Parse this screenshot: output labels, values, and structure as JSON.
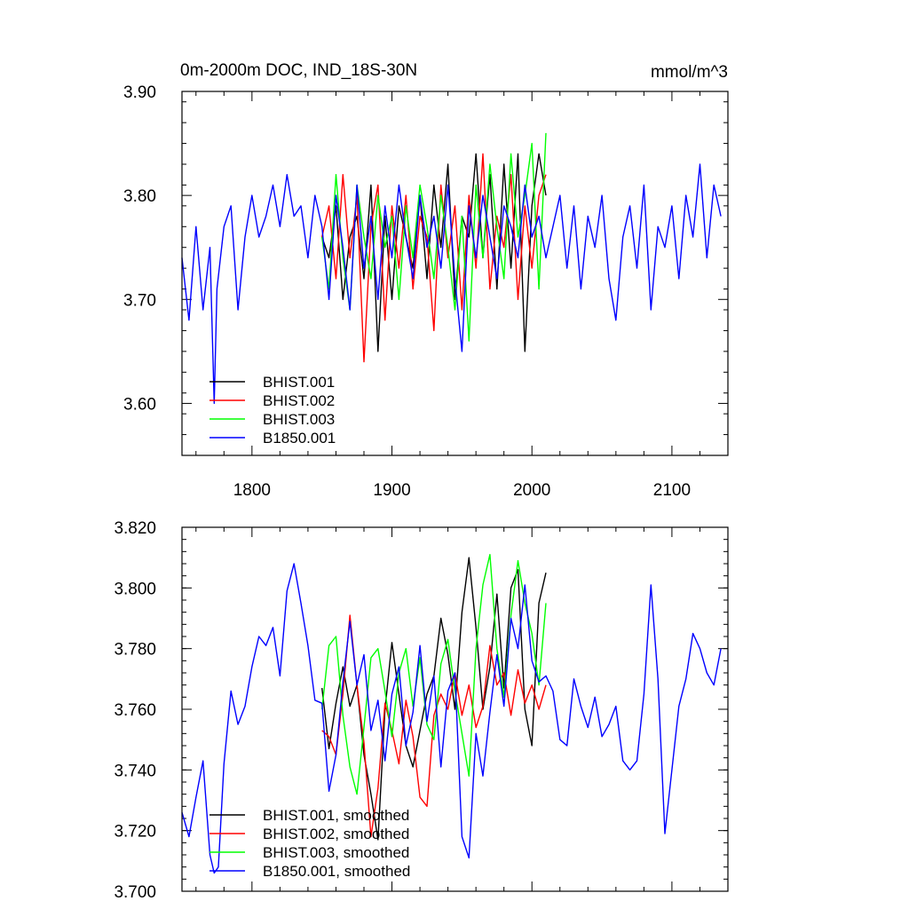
{
  "chart_data": [
    {
      "type": "line",
      "title": "0m-2000m DOC, IND_18S-30N",
      "units": "mmol/m^3",
      "xlim": [
        1750,
        2140
      ],
      "ylim": [
        3.55,
        3.9
      ],
      "xticks": [
        1800,
        1900,
        2000,
        2100
      ],
      "xtick_labels": [
        "1800",
        "1900",
        "2000",
        "2100"
      ],
      "yticks": [
        3.6,
        3.7,
        3.8,
        3.9
      ],
      "ytick_labels": [
        "3.60",
        "3.70",
        "3.80",
        "3.90"
      ],
      "legend_position": "bottom-left",
      "series": [
        {
          "name": "BHIST.001",
          "color": "#000000",
          "x": [
            1850,
            1855,
            1860,
            1865,
            1870,
            1875,
            1880,
            1885,
            1890,
            1895,
            1900,
            1905,
            1910,
            1915,
            1920,
            1925,
            1930,
            1935,
            1940,
            1945,
            1950,
            1955,
            1960,
            1965,
            1970,
            1975,
            1980,
            1985,
            1990,
            1995,
            2000,
            2005,
            2010
          ],
          "y": [
            3.76,
            3.74,
            3.79,
            3.7,
            3.76,
            3.78,
            3.72,
            3.81,
            3.65,
            3.78,
            3.7,
            3.79,
            3.76,
            3.73,
            3.8,
            3.72,
            3.81,
            3.75,
            3.83,
            3.7,
            3.78,
            3.76,
            3.84,
            3.74,
            3.82,
            3.71,
            3.83,
            3.73,
            3.84,
            3.65,
            3.79,
            3.84,
            3.8
          ]
        },
        {
          "name": "BHIST.002",
          "color": "#ff0000",
          "x": [
            1850,
            1855,
            1860,
            1865,
            1870,
            1875,
            1880,
            1885,
            1890,
            1895,
            1900,
            1905,
            1910,
            1915,
            1920,
            1925,
            1930,
            1935,
            1940,
            1945,
            1950,
            1955,
            1960,
            1965,
            1970,
            1975,
            1980,
            1985,
            1990,
            1995,
            2000,
            2005,
            2010
          ],
          "y": [
            3.76,
            3.79,
            3.72,
            3.82,
            3.74,
            3.8,
            3.64,
            3.77,
            3.81,
            3.68,
            3.79,
            3.73,
            3.8,
            3.71,
            3.78,
            3.76,
            3.67,
            3.81,
            3.74,
            3.79,
            3.69,
            3.8,
            3.73,
            3.84,
            3.71,
            3.78,
            3.75,
            3.82,
            3.7,
            3.79,
            3.73,
            3.8,
            3.82
          ]
        },
        {
          "name": "BHIST.003",
          "color": "#00ff00",
          "x": [
            1850,
            1855,
            1860,
            1865,
            1870,
            1875,
            1880,
            1885,
            1890,
            1895,
            1900,
            1905,
            1910,
            1915,
            1920,
            1925,
            1930,
            1935,
            1940,
            1945,
            1950,
            1955,
            1960,
            1965,
            1970,
            1975,
            1980,
            1985,
            1990,
            1995,
            2000,
            2005,
            2010
          ],
          "y": [
            3.76,
            3.71,
            3.82,
            3.74,
            3.69,
            3.81,
            3.76,
            3.72,
            3.8,
            3.75,
            3.78,
            3.7,
            3.79,
            3.74,
            3.81,
            3.77,
            3.72,
            3.8,
            3.75,
            3.69,
            3.78,
            3.66,
            3.81,
            3.74,
            3.83,
            3.77,
            3.72,
            3.84,
            3.76,
            3.8,
            3.85,
            3.71,
            3.86
          ]
        },
        {
          "name": "B1850.001",
          "color": "#0000ff",
          "x": [
            1750,
            1755,
            1760,
            1765,
            1770,
            1773,
            1775,
            1780,
            1785,
            1790,
            1795,
            1800,
            1805,
            1810,
            1815,
            1820,
            1825,
            1830,
            1835,
            1840,
            1845,
            1850,
            1855,
            1860,
            1865,
            1870,
            1875,
            1880,
            1885,
            1890,
            1895,
            1900,
            1905,
            1910,
            1915,
            1920,
            1925,
            1930,
            1935,
            1940,
            1945,
            1950,
            1955,
            1960,
            1965,
            1970,
            1975,
            1980,
            1985,
            1990,
            1995,
            2000,
            2005,
            2010,
            2015,
            2020,
            2025,
            2030,
            2035,
            2040,
            2045,
            2050,
            2055,
            2060,
            2065,
            2070,
            2075,
            2080,
            2085,
            2090,
            2095,
            2100,
            2105,
            2110,
            2115,
            2120,
            2125,
            2130,
            2135
          ],
          "y": [
            3.74,
            3.68,
            3.77,
            3.69,
            3.75,
            3.6,
            3.71,
            3.77,
            3.79,
            3.69,
            3.76,
            3.8,
            3.76,
            3.78,
            3.81,
            3.77,
            3.82,
            3.78,
            3.79,
            3.74,
            3.8,
            3.77,
            3.7,
            3.8,
            3.75,
            3.69,
            3.81,
            3.73,
            3.78,
            3.7,
            3.79,
            3.74,
            3.81,
            3.76,
            3.72,
            3.8,
            3.75,
            3.78,
            3.73,
            3.81,
            3.72,
            3.65,
            3.79,
            3.74,
            3.8,
            3.76,
            3.72,
            3.79,
            3.77,
            3.74,
            3.81,
            3.76,
            3.78,
            3.74,
            3.77,
            3.8,
            3.73,
            3.79,
            3.71,
            3.78,
            3.75,
            3.8,
            3.72,
            3.68,
            3.76,
            3.79,
            3.73,
            3.81,
            3.69,
            3.77,
            3.75,
            3.79,
            3.72,
            3.8,
            3.76,
            3.83,
            3.74,
            3.81,
            3.78
          ]
        }
      ]
    },
    {
      "type": "line",
      "xlim": [
        1750,
        2140
      ],
      "ylim": [
        3.7,
        3.82
      ],
      "xticks": [
        1800,
        1900,
        2000,
        2100
      ],
      "yticks": [
        3.7,
        3.72,
        3.74,
        3.76,
        3.78,
        3.8,
        3.82
      ],
      "ytick_labels": [
        "3.700",
        "3.720",
        "3.740",
        "3.760",
        "3.780",
        "3.800",
        "3.820"
      ],
      "legend_position": "bottom-left",
      "series": [
        {
          "name": "BHIST.001, smoothed",
          "color": "#000000",
          "x": [
            1850,
            1855,
            1860,
            1865,
            1870,
            1875,
            1880,
            1885,
            1890,
            1895,
            1900,
            1905,
            1910,
            1915,
            1920,
            1925,
            1930,
            1935,
            1940,
            1945,
            1950,
            1955,
            1960,
            1965,
            1970,
            1975,
            1980,
            1985,
            1990,
            1995,
            2000,
            2005,
            2010
          ],
          "y": [
            3.767,
            3.747,
            3.762,
            3.774,
            3.761,
            3.768,
            3.745,
            3.732,
            3.717,
            3.76,
            3.782,
            3.765,
            3.748,
            3.741,
            3.753,
            3.765,
            3.771,
            3.79,
            3.778,
            3.76,
            3.792,
            3.81,
            3.787,
            3.76,
            3.774,
            3.798,
            3.767,
            3.8,
            3.806,
            3.76,
            3.748,
            3.795,
            3.805
          ]
        },
        {
          "name": "BHIST.002, smoothed",
          "color": "#ff0000",
          "x": [
            1850,
            1855,
            1860,
            1865,
            1870,
            1875,
            1880,
            1885,
            1890,
            1895,
            1900,
            1905,
            1910,
            1915,
            1920,
            1925,
            1930,
            1935,
            1940,
            1945,
            1950,
            1955,
            1960,
            1965,
            1970,
            1975,
            1980,
            1985,
            1990,
            1995,
            2000,
            2005,
            2010
          ],
          "y": [
            3.753,
            3.751,
            3.745,
            3.765,
            3.791,
            3.768,
            3.749,
            3.718,
            3.734,
            3.762,
            3.753,
            3.742,
            3.763,
            3.751,
            3.731,
            3.728,
            3.758,
            3.765,
            3.76,
            3.772,
            3.758,
            3.768,
            3.754,
            3.761,
            3.781,
            3.768,
            3.772,
            3.758,
            3.773,
            3.762,
            3.768,
            3.76,
            3.768
          ]
        },
        {
          "name": "BHIST.003, smoothed",
          "color": "#00ff00",
          "x": [
            1850,
            1855,
            1860,
            1865,
            1870,
            1875,
            1880,
            1885,
            1890,
            1895,
            1900,
            1905,
            1910,
            1915,
            1920,
            1925,
            1930,
            1935,
            1940,
            1945,
            1950,
            1955,
            1960,
            1965,
            1970,
            1975,
            1980,
            1985,
            1990,
            1995,
            2000,
            2005,
            2010
          ],
          "y": [
            3.76,
            3.781,
            3.784,
            3.758,
            3.741,
            3.732,
            3.754,
            3.777,
            3.78,
            3.766,
            3.751,
            3.772,
            3.78,
            3.761,
            3.777,
            3.755,
            3.75,
            3.775,
            3.783,
            3.766,
            3.752,
            3.738,
            3.78,
            3.801,
            3.811,
            3.78,
            3.764,
            3.791,
            3.809,
            3.795,
            3.785,
            3.768,
            3.795
          ]
        },
        {
          "name": "B1850.001, smoothed",
          "color": "#0000ff",
          "x": [
            1750,
            1755,
            1760,
            1765,
            1770,
            1773,
            1776,
            1780,
            1785,
            1790,
            1795,
            1800,
            1805,
            1810,
            1815,
            1820,
            1825,
            1830,
            1835,
            1840,
            1845,
            1850,
            1855,
            1860,
            1865,
            1870,
            1875,
            1880,
            1885,
            1890,
            1895,
            1900,
            1905,
            1910,
            1915,
            1920,
            1925,
            1930,
            1935,
            1940,
            1945,
            1950,
            1955,
            1960,
            1965,
            1970,
            1975,
            1980,
            1985,
            1990,
            1995,
            2000,
            2005,
            2010,
            2015,
            2020,
            2025,
            2030,
            2035,
            2040,
            2045,
            2050,
            2055,
            2060,
            2065,
            2070,
            2075,
            2080,
            2085,
            2090,
            2095,
            2100,
            2105,
            2110,
            2115,
            2120,
            2125,
            2130,
            2135
          ],
          "y": [
            3.726,
            3.718,
            3.731,
            3.743,
            3.712,
            3.706,
            3.708,
            3.742,
            3.766,
            3.755,
            3.761,
            3.774,
            3.784,
            3.781,
            3.787,
            3.771,
            3.799,
            3.808,
            3.795,
            3.781,
            3.763,
            3.762,
            3.733,
            3.745,
            3.769,
            3.789,
            3.768,
            3.778,
            3.753,
            3.763,
            3.743,
            3.765,
            3.774,
            3.748,
            3.759,
            3.781,
            3.756,
            3.771,
            3.741,
            3.766,
            3.772,
            3.718,
            3.711,
            3.752,
            3.738,
            3.759,
            3.778,
            3.761,
            3.79,
            3.78,
            3.801,
            3.776,
            3.769,
            3.771,
            3.766,
            3.75,
            3.748,
            3.77,
            3.761,
            3.754,
            3.764,
            3.751,
            3.755,
            3.761,
            3.743,
            3.74,
            3.743,
            3.765,
            3.801,
            3.77,
            3.719,
            3.74,
            3.761,
            3.77,
            3.785,
            3.78,
            3.772,
            3.768,
            3.78
          ]
        }
      ]
    }
  ]
}
